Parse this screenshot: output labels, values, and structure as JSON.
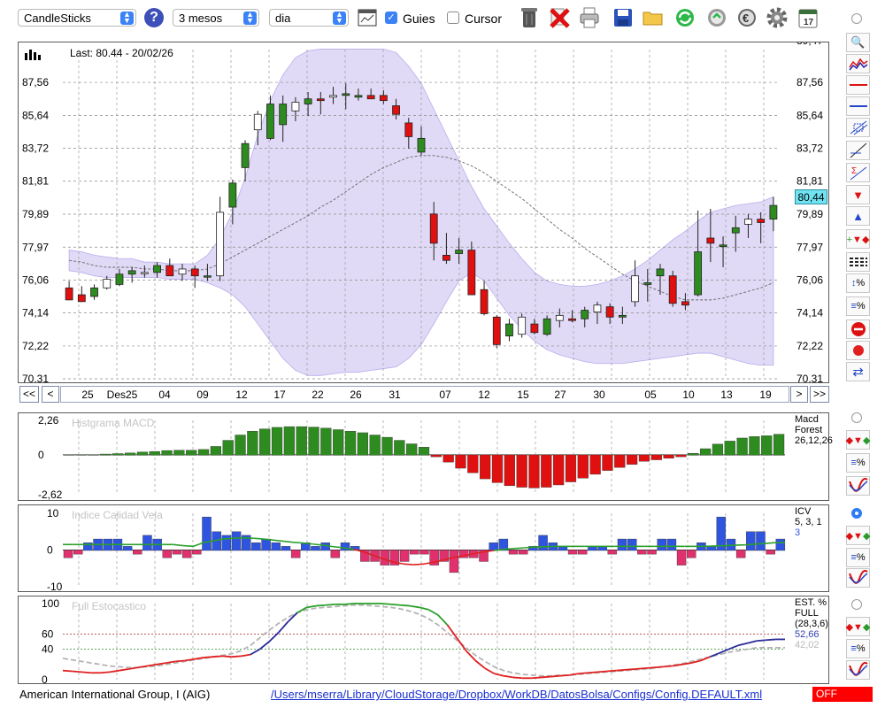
{
  "toolbar": {
    "chart_type": "CandleSticks",
    "period": "3 mesos",
    "interval": "dia",
    "guides_label": "Guies",
    "guides_checked": true,
    "cursor_label": "Cursor",
    "cursor_checked": false,
    "help_icon": "?",
    "calendar_day": "17"
  },
  "price_panel": {
    "last_label": "Last: 80.44 - 20/02/26",
    "last_value_badge": "80,44",
    "y_ticks": [
      "87,56",
      "85,64",
      "83,72",
      "81,81",
      "79,89",
      "77,97",
      "76,06",
      "74,14",
      "72,22",
      "70,31"
    ],
    "top_partial_tick": "89,47",
    "x_labels": [
      "25",
      "Des25",
      "04",
      "09",
      "12",
      "17",
      "22",
      "26",
      "31",
      "07",
      "12",
      "15",
      "27",
      "30",
      "05",
      "10",
      "13",
      "19"
    ],
    "nav_buttons": [
      "<<",
      "<",
      ">",
      ">>"
    ]
  },
  "macd_panel": {
    "title": "Histgrama MACD",
    "y_ticks": [
      "2,26",
      "0",
      "-2,62"
    ],
    "legend": [
      "Macd",
      "Forest",
      "26,12,26"
    ]
  },
  "icv_panel": {
    "title": "Indice Calidad Vela",
    "y_ticks": [
      "10",
      "0",
      "-10"
    ],
    "legend": [
      "ICV",
      "5, 3, 1",
      "3"
    ]
  },
  "stoch_panel": {
    "title": "Full Estocastico",
    "y_ticks": [
      "100",
      "60",
      "40",
      "0"
    ],
    "legend": [
      "EST. %",
      "FULL",
      "(28,3,6)",
      "52,66",
      "42,02"
    ]
  },
  "status": {
    "company": "American International Group, I (AIG)",
    "config_path": "/Users/mserra/Library/CloudStorage/Dropbox/WorkDB/DatosBolsa/Configs/Config.DEFAULT.xml",
    "off_label": "OFF"
  },
  "colors": {
    "up": "#2e8b1f",
    "down": "#e01010",
    "band": "#dcd4f4",
    "band_edge": "#b8acec",
    "grid": "#888888",
    "badge": "#6fe3f2",
    "icv_up": "#2f55e0",
    "icv_down": "#e0306e"
  },
  "chart_data": [
    {
      "type": "candlestick",
      "ylim": [
        70.31,
        89.47
      ],
      "candles": [
        {
          "o": 75.6,
          "h": 76.0,
          "l": 74.9,
          "c": 74.9
        },
        {
          "o": 75.2,
          "h": 75.7,
          "l": 74.9,
          "c": 74.8
        },
        {
          "o": 75.1,
          "h": 75.8,
          "l": 74.9,
          "c": 75.6
        },
        {
          "o": 75.6,
          "h": 76.3,
          "l": 75.5,
          "c": 76.1
        },
        {
          "o": 75.8,
          "h": 76.7,
          "l": 75.7,
          "c": 76.4
        },
        {
          "o": 76.4,
          "h": 76.8,
          "l": 75.9,
          "c": 76.6
        },
        {
          "o": 76.5,
          "h": 76.9,
          "l": 76.2,
          "c": 76.5
        },
        {
          "o": 76.5,
          "h": 77.1,
          "l": 76.2,
          "c": 76.9
        },
        {
          "o": 76.9,
          "h": 77.3,
          "l": 76.3,
          "c": 76.3
        },
        {
          "o": 76.4,
          "h": 77.0,
          "l": 76.0,
          "c": 76.7
        },
        {
          "o": 76.7,
          "h": 76.9,
          "l": 75.6,
          "c": 76.3
        },
        {
          "o": 76.3,
          "h": 77.0,
          "l": 76.0,
          "c": 76.3
        },
        {
          "o": 76.3,
          "h": 80.9,
          "l": 76.0,
          "c": 80.0
        },
        {
          "o": 80.3,
          "h": 81.9,
          "l": 79.3,
          "c": 81.7
        },
        {
          "o": 82.6,
          "h": 84.2,
          "l": 81.8,
          "c": 84.0
        },
        {
          "o": 84.8,
          "h": 85.9,
          "l": 83.9,
          "c": 85.7
        },
        {
          "o": 84.3,
          "h": 86.8,
          "l": 84.2,
          "c": 86.3
        },
        {
          "o": 85.1,
          "h": 86.8,
          "l": 84.1,
          "c": 86.3
        },
        {
          "o": 85.9,
          "h": 86.7,
          "l": 85.3,
          "c": 86.4
        },
        {
          "o": 86.3,
          "h": 87.0,
          "l": 85.6,
          "c": 86.6
        },
        {
          "o": 86.6,
          "h": 87.0,
          "l": 85.7,
          "c": 86.5
        },
        {
          "o": 86.7,
          "h": 87.3,
          "l": 86.3,
          "c": 86.8
        },
        {
          "o": 86.8,
          "h": 87.5,
          "l": 86.0,
          "c": 86.9
        },
        {
          "o": 86.7,
          "h": 87.2,
          "l": 86.5,
          "c": 86.8
        },
        {
          "o": 86.8,
          "h": 87.2,
          "l": 86.6,
          "c": 86.6
        },
        {
          "o": 86.8,
          "h": 87.1,
          "l": 86.3,
          "c": 86.5
        },
        {
          "o": 86.2,
          "h": 86.6,
          "l": 85.4,
          "c": 85.7
        },
        {
          "o": 85.2,
          "h": 85.5,
          "l": 83.7,
          "c": 84.4
        },
        {
          "o": 83.5,
          "h": 85.0,
          "l": 83.3,
          "c": 84.3
        },
        {
          "o": 79.9,
          "h": 80.6,
          "l": 77.2,
          "c": 78.2
        },
        {
          "o": 77.5,
          "h": 78.8,
          "l": 77.0,
          "c": 77.2
        },
        {
          "o": 77.6,
          "h": 78.5,
          "l": 77.0,
          "c": 77.8
        },
        {
          "o": 77.8,
          "h": 78.3,
          "l": 75.2,
          "c": 75.2
        },
        {
          "o": 75.5,
          "h": 76.0,
          "l": 74.0,
          "c": 74.1
        },
        {
          "o": 73.9,
          "h": 74.0,
          "l": 72.1,
          "c": 72.3
        },
        {
          "o": 72.8,
          "h": 73.8,
          "l": 72.5,
          "c": 73.5
        },
        {
          "o": 72.9,
          "h": 74.1,
          "l": 72.7,
          "c": 73.9
        },
        {
          "o": 73.5,
          "h": 73.8,
          "l": 72.9,
          "c": 73.0
        },
        {
          "o": 72.9,
          "h": 74.0,
          "l": 72.8,
          "c": 73.8
        },
        {
          "o": 73.7,
          "h": 74.4,
          "l": 73.3,
          "c": 74.0
        },
        {
          "o": 73.8,
          "h": 74.3,
          "l": 73.6,
          "c": 73.7
        },
        {
          "o": 73.8,
          "h": 74.5,
          "l": 73.3,
          "c": 74.3
        },
        {
          "o": 74.2,
          "h": 74.8,
          "l": 73.5,
          "c": 74.6
        },
        {
          "o": 74.5,
          "h": 74.7,
          "l": 73.5,
          "c": 73.9
        },
        {
          "o": 73.9,
          "h": 74.5,
          "l": 73.5,
          "c": 74.0
        },
        {
          "o": 74.8,
          "h": 77.2,
          "l": 74.5,
          "c": 76.3
        },
        {
          "o": 75.8,
          "h": 76.7,
          "l": 74.8,
          "c": 75.9
        },
        {
          "o": 76.3,
          "h": 77.0,
          "l": 75.2,
          "c": 76.7
        },
        {
          "o": 76.3,
          "h": 76.6,
          "l": 74.5,
          "c": 74.7
        },
        {
          "o": 74.8,
          "h": 75.3,
          "l": 74.3,
          "c": 74.6
        },
        {
          "o": 75.2,
          "h": 80.1,
          "l": 75.1,
          "c": 77.7
        },
        {
          "o": 78.5,
          "h": 80.2,
          "l": 77.1,
          "c": 78.2
        },
        {
          "o": 78.0,
          "h": 78.6,
          "l": 76.8,
          "c": 78.1
        },
        {
          "o": 78.8,
          "h": 79.8,
          "l": 77.7,
          "c": 79.1
        },
        {
          "o": 79.3,
          "h": 79.9,
          "l": 78.5,
          "c": 79.6
        },
        {
          "o": 79.6,
          "h": 80.0,
          "l": 78.2,
          "c": 79.4
        },
        {
          "o": 79.6,
          "h": 80.9,
          "l": 78.9,
          "c": 80.4
        }
      ],
      "moving_average": [
        77.2,
        77.1,
        76.9,
        76.8,
        76.8,
        76.8,
        76.7,
        76.7,
        76.6,
        76.6,
        76.6,
        76.7,
        77.0,
        77.4,
        77.8,
        78.2,
        78.6,
        79.0,
        79.4,
        79.8,
        80.3,
        80.7,
        81.2,
        81.7,
        82.2,
        82.6,
        82.9,
        83.2,
        83.3,
        83.3,
        83.2,
        83.0,
        82.7,
        82.3,
        81.8,
        81.3,
        80.8,
        80.2,
        79.6,
        79.0,
        78.5,
        77.9,
        77.4,
        76.9,
        76.4,
        76.0,
        75.7,
        75.4,
        75.1,
        74.9,
        74.9,
        74.9,
        75.0,
        75.2,
        75.4,
        75.6,
        75.9
      ],
      "band_upper": [
        77.8,
        77.7,
        77.5,
        77.4,
        77.3,
        77.3,
        77.1,
        77.1,
        77.0,
        77.0,
        77.0,
        77.5,
        78.5,
        80.0,
        82.0,
        84.5,
        86.5,
        88.0,
        89.0,
        89.4,
        89.5,
        89.5,
        89.5,
        89.5,
        89.5,
        89.5,
        89.3,
        88.5,
        87.5,
        86.0,
        84.5,
        83.0,
        81.5,
        80.2,
        79.2,
        78.2,
        77.3,
        76.5,
        76.0,
        75.8,
        75.7,
        75.7,
        75.8,
        76.0,
        76.3,
        76.7,
        77.2,
        77.8,
        78.4,
        78.9,
        79.5,
        80.0,
        80.2,
        80.4,
        80.5,
        80.6,
        80.9
      ],
      "band_lower": [
        76.6,
        76.5,
        76.3,
        76.2,
        76.2,
        76.2,
        76.2,
        76.2,
        76.1,
        76.1,
        76.1,
        75.9,
        75.6,
        75.2,
        74.5,
        73.5,
        72.5,
        71.5,
        70.8,
        70.5,
        70.5,
        70.6,
        70.7,
        70.7,
        70.8,
        70.9,
        71.0,
        71.5,
        72.3,
        73.5,
        74.8,
        76.0,
        76.5,
        76.0,
        75.0,
        74.0,
        73.2,
        72.5,
        72.0,
        71.7,
        71.5,
        71.3,
        71.2,
        71.2,
        71.2,
        71.3,
        71.4,
        71.5,
        71.6,
        71.7,
        71.8,
        71.8,
        71.6,
        71.4,
        71.2,
        71.1,
        71.1
      ]
    },
    {
      "type": "bar",
      "title": "Histgrama MACD",
      "ylim": [
        -2.62,
        2.26
      ],
      "values": [
        0.0,
        0.0,
        0.0,
        0.05,
        0.08,
        0.12,
        0.18,
        0.22,
        0.28,
        0.3,
        0.3,
        0.35,
        0.55,
        0.95,
        1.3,
        1.55,
        1.7,
        1.8,
        1.85,
        1.85,
        1.82,
        1.75,
        1.65,
        1.55,
        1.45,
        1.3,
        1.15,
        0.95,
        0.72,
        0.5,
        -0.1,
        -0.45,
        -0.85,
        -1.15,
        -1.55,
        -1.8,
        -2.0,
        -2.1,
        -2.15,
        -2.1,
        -1.95,
        -1.75,
        -1.5,
        -1.25,
        -1.0,
        -0.8,
        -0.6,
        -0.4,
        -0.3,
        -0.2,
        -0.1,
        0.1,
        0.4,
        0.7,
        0.9,
        1.1,
        1.2,
        1.25,
        1.35
      ]
    },
    {
      "type": "bar",
      "title": "Indice Calidad Vela",
      "ylim": [
        -10,
        10
      ],
      "values": [
        -2,
        -1,
        2,
        3,
        3,
        3,
        1,
        -1,
        4,
        3,
        -2,
        -1,
        -2,
        -1,
        9,
        5,
        4,
        5,
        4,
        2,
        3,
        2,
        1,
        -2,
        2,
        1,
        2,
        -2,
        2,
        1,
        -3,
        -3,
        -4,
        -4,
        -3,
        -1,
        -1,
        -4,
        -3,
        -6,
        -2,
        -2,
        -3,
        2,
        3,
        -1,
        -1,
        1,
        4,
        2,
        1,
        -1,
        -1,
        1,
        1,
        -1,
        3,
        3,
        -1,
        -1,
        3,
        3,
        -4,
        -2,
        2,
        1,
        9,
        3,
        -2,
        5,
        5,
        -1,
        3
      ],
      "signal": [
        1.5,
        1.5,
        1.5,
        1.5,
        1.5,
        1.5,
        1.5,
        1.5,
        1.5,
        1.5,
        1.5,
        1.5,
        1.2,
        1.0,
        2.0,
        2.5,
        3.0,
        3.2,
        3.3,
        3.2,
        3.0,
        2.7,
        2.4,
        2.1,
        1.9,
        1.6,
        1.3,
        0.9,
        0.6,
        0.2,
        -0.5,
        -1.5,
        -2.5,
        -3.3,
        -3.8,
        -4.0,
        -3.8,
        -3.3,
        -2.7,
        -2.0,
        -1.5,
        -1.0,
        -0.5,
        -0.1,
        0.2,
        0.4,
        0.6,
        0.8,
        0.9,
        1.0,
        1.0,
        1.0,
        1.0,
        1.0,
        1.0,
        1.0,
        1.0,
        1.0,
        1.0,
        1.0,
        1.0,
        1.0,
        1.0,
        1.0,
        1.0,
        1.1,
        1.2,
        1.3,
        1.4,
        1.6,
        1.8,
        2.0,
        2.0
      ]
    },
    {
      "type": "line",
      "title": "Full Estocastico",
      "ylim": [
        0,
        100
      ],
      "series": [
        {
          "values": [
            12,
            11,
            10,
            9,
            9,
            10,
            12,
            14,
            16,
            18,
            20,
            22,
            24,
            25,
            27,
            29,
            30,
            31,
            30,
            31,
            33,
            40,
            50,
            62,
            76,
            88,
            95,
            97,
            98,
            99,
            99,
            100,
            100,
            100,
            100,
            99,
            98,
            97,
            95,
            92,
            85,
            72,
            55,
            38,
            25,
            15,
            8,
            5,
            3,
            2,
            2,
            3,
            4,
            5,
            6,
            8,
            9,
            10,
            11,
            12,
            13,
            14,
            15,
            16,
            17,
            18,
            20,
            22,
            25,
            30,
            35,
            40,
            45,
            48,
            51,
            52,
            53,
            53
          ]
        },
        {
          "values": [
            28,
            26,
            24,
            22,
            20,
            18,
            17,
            16,
            16,
            17,
            18,
            20,
            22,
            24,
            26,
            28,
            30,
            32,
            34,
            38,
            45,
            55,
            65,
            74,
            82,
            88,
            92,
            94,
            95,
            96,
            97,
            98,
            98,
            97,
            96,
            95,
            93,
            90,
            86,
            80,
            72,
            62,
            52,
            42,
            32,
            24,
            17,
            12,
            9,
            7,
            6,
            5,
            5,
            6,
            6,
            7,
            8,
            9,
            10,
            11,
            12,
            13,
            14,
            15,
            17,
            19,
            21,
            24,
            27,
            30,
            33,
            36,
            38,
            40,
            42,
            42,
            42,
            42
          ]
        }
      ]
    }
  ]
}
